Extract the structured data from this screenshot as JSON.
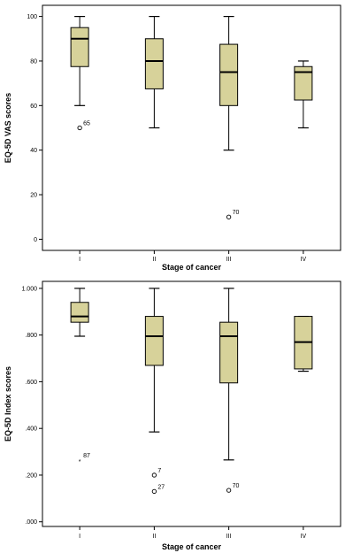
{
  "chart_data": [
    {
      "type": "box",
      "xlabel": "Stage of cancer",
      "ylabel": "EQ-5D VAS scores",
      "categories": [
        "I",
        "II",
        "III",
        "IV"
      ],
      "ylim": [
        -5,
        105
      ],
      "yticks": [
        0,
        20,
        40,
        60,
        80,
        100
      ],
      "ytick_labels": [
        "0",
        "20",
        "40",
        "60",
        "80",
        "100"
      ],
      "box_color": "#d7d29a",
      "boxes": [
        {
          "category": "I",
          "whisker_low": 60,
          "q1": 77.5,
          "median": 90,
          "q3": 95,
          "whisker_high": 100
        },
        {
          "category": "II",
          "whisker_low": 50,
          "q1": 67.5,
          "median": 80,
          "q3": 90,
          "whisker_high": 100
        },
        {
          "category": "III",
          "whisker_low": 40,
          "q1": 60,
          "median": 75,
          "q3": 87.5,
          "whisker_high": 100
        },
        {
          "category": "IV",
          "whisker_low": 50,
          "q1": 62.5,
          "median": 75,
          "q3": 77.5,
          "whisker_high": 80
        }
      ],
      "outliers": [
        {
          "category": "I",
          "value": 50,
          "label": "65",
          "marker": "circle"
        },
        {
          "category": "III",
          "value": 10,
          "label": "70",
          "marker": "circle"
        }
      ]
    },
    {
      "type": "box",
      "xlabel": "Stage of cancer",
      "ylabel": "EQ-5D Index scores",
      "categories": [
        "I",
        "II",
        "III",
        "IV"
      ],
      "ylim": [
        -0.02,
        1.03
      ],
      "yticks": [
        0,
        0.2,
        0.4,
        0.6,
        0.8,
        1.0
      ],
      "ytick_labels": [
        ".000",
        ".200",
        ".400",
        ".600",
        ".800",
        "1.000"
      ],
      "box_color": "#d7d29a",
      "boxes": [
        {
          "category": "I",
          "whisker_low": 0.795,
          "q1": 0.855,
          "median": 0.88,
          "q3": 0.94,
          "whisker_high": 1.0
        },
        {
          "category": "II",
          "whisker_low": 0.385,
          "q1": 0.67,
          "median": 0.795,
          "q3": 0.88,
          "whisker_high": 1.0
        },
        {
          "category": "III",
          "whisker_low": 0.265,
          "q1": 0.595,
          "median": 0.795,
          "q3": 0.855,
          "whisker_high": 1.0
        },
        {
          "category": "IV",
          "whisker_low": 0.645,
          "q1": 0.655,
          "median": 0.77,
          "q3": 0.88,
          "whisker_high": 0.88
        }
      ],
      "outliers": [
        {
          "category": "I",
          "value": 0.265,
          "label": "87",
          "marker": "star"
        },
        {
          "category": "II",
          "value": 0.2,
          "label": "7",
          "marker": "circle"
        },
        {
          "category": "II",
          "value": 0.13,
          "label": "27",
          "marker": "circle"
        },
        {
          "category": "III",
          "value": 0.135,
          "label": "70",
          "marker": "circle"
        }
      ]
    }
  ]
}
